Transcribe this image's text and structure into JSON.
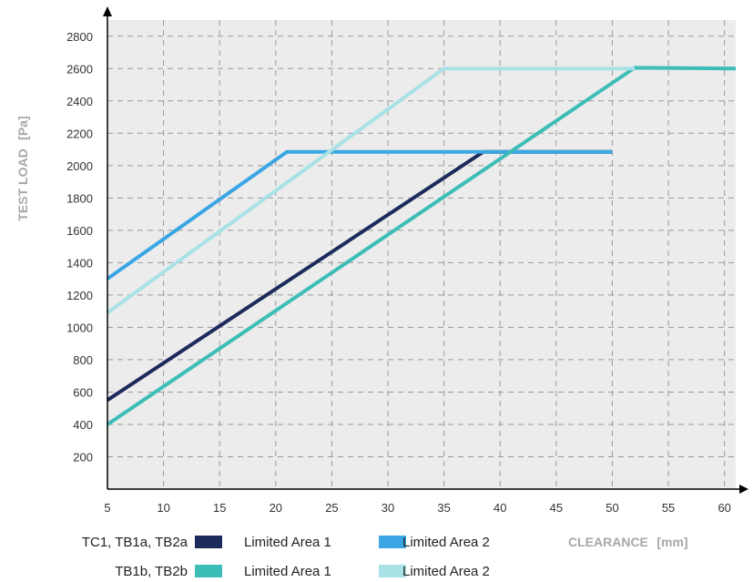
{
  "chart_data": {
    "type": "line",
    "xlabel": "CLEARANCE",
    "xunit": "[mm]",
    "ylabel": "TEST LOAD",
    "yunit": "[Pa]",
    "xlim": [
      5,
      61
    ],
    "ylim": [
      0,
      2900
    ],
    "xticks": [
      5,
      10,
      15,
      20,
      25,
      30,
      35,
      40,
      45,
      50,
      55,
      60
    ],
    "yticks": [
      200,
      400,
      600,
      800,
      1000,
      1200,
      1400,
      1600,
      1800,
      2000,
      2200,
      2400,
      2600,
      2800
    ],
    "grid": true,
    "legend_position": "bottom",
    "series": [
      {
        "name": "TC1, TB1a, TB2a — Limited Area 1",
        "color": "#1c2a5c",
        "x": [
          5,
          38.5,
          50
        ],
        "y": [
          550,
          2085,
          2085
        ]
      },
      {
        "name": "TC1, TB1a, TB2a — Limited Area 2",
        "color": "#3aa6e4",
        "x": [
          5,
          21,
          50
        ],
        "y": [
          1300,
          2085,
          2085
        ]
      },
      {
        "name": "TB1b, TB2b — Limited Area 1",
        "color": "#3dbdb7",
        "x": [
          5,
          52,
          61
        ],
        "y": [
          400,
          2605,
          2600
        ]
      },
      {
        "name": "TB1b, TB2b — Limited Area 2",
        "color": "#a9e2e6",
        "x": [
          5,
          35,
          52
        ],
        "y": [
          1090,
          2600,
          2600
        ]
      }
    ]
  },
  "legend": {
    "rows": [
      {
        "group": "TC1, TB1a, TB2a",
        "items": [
          {
            "label": "Limited Area 1",
            "color": "#1c2a5c"
          },
          {
            "label": "Limited Area 2",
            "color": "#3aa6e4"
          }
        ]
      },
      {
        "group": "TB1b, TB2b",
        "items": [
          {
            "label": "Limited Area 1",
            "color": "#3dbdb7"
          },
          {
            "label": "Limited Area 2",
            "color": "#a9e2e6"
          }
        ]
      }
    ]
  }
}
